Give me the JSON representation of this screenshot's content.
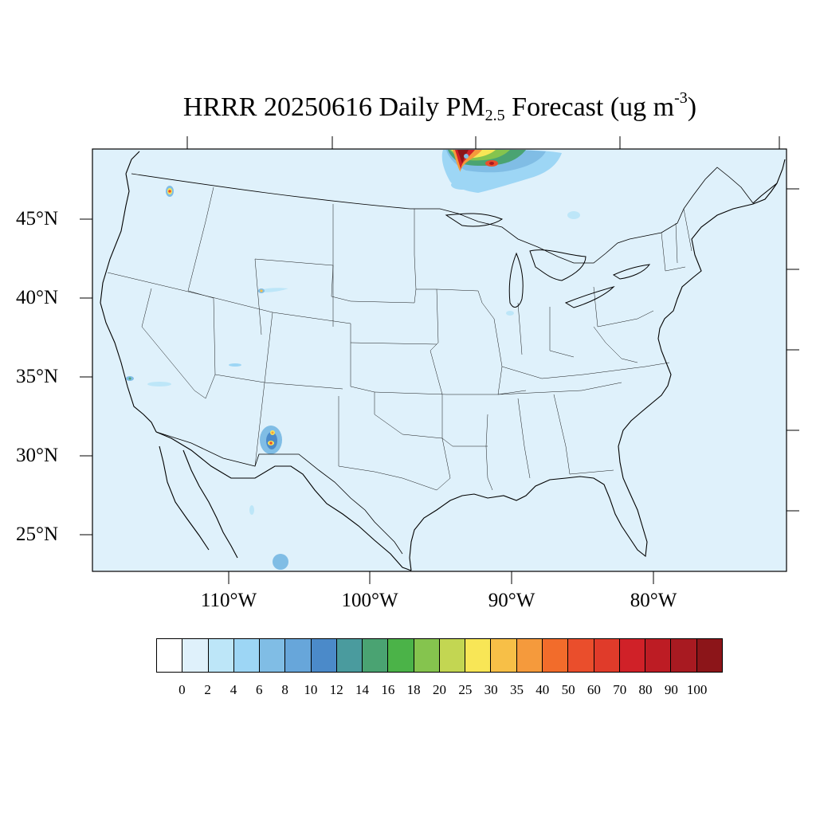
{
  "title": {
    "prefix": "HRRR 20250616 Daily PM",
    "subscript": "2.5",
    "middle": " Forecast (ug m",
    "superscript": "-3",
    "suffix": ")"
  },
  "map": {
    "background_color": "#dff1fb",
    "latitude_labels": [
      "45°N",
      "40°N",
      "35°N",
      "30°N",
      "25°N"
    ],
    "longitude_labels": [
      "110°W",
      "100°W",
      "90°W",
      "80°W"
    ],
    "plumes": [
      {
        "name": "canada-border-smoke",
        "max_level": "90"
      },
      {
        "name": "washington-fire",
        "max_level": "60"
      },
      {
        "name": "wyoming-fire",
        "max_level": "35"
      },
      {
        "name": "california-fire",
        "max_level": "12"
      },
      {
        "name": "new-mexico-fire",
        "max_level": "60"
      }
    ]
  },
  "colorbar": {
    "labels": [
      "0",
      "2",
      "4",
      "6",
      "8",
      "10",
      "12",
      "14",
      "16",
      "18",
      "20",
      "25",
      "30",
      "35",
      "40",
      "50",
      "60",
      "70",
      "80",
      "90",
      "100"
    ],
    "colors": [
      "#ffffff",
      "#dff1fb",
      "#bde6f8",
      "#9dd6f5",
      "#80bde5",
      "#67a6da",
      "#4b8ac9",
      "#4a9b9e",
      "#4aa372",
      "#4bb348",
      "#85c44e",
      "#c3d652",
      "#f8e656",
      "#f7bf47",
      "#f59a3c",
      "#f26c2b",
      "#ea4e2c",
      "#e03b2a",
      "#d02128",
      "#bd1c24",
      "#a81a21",
      "#8c1519"
    ]
  }
}
